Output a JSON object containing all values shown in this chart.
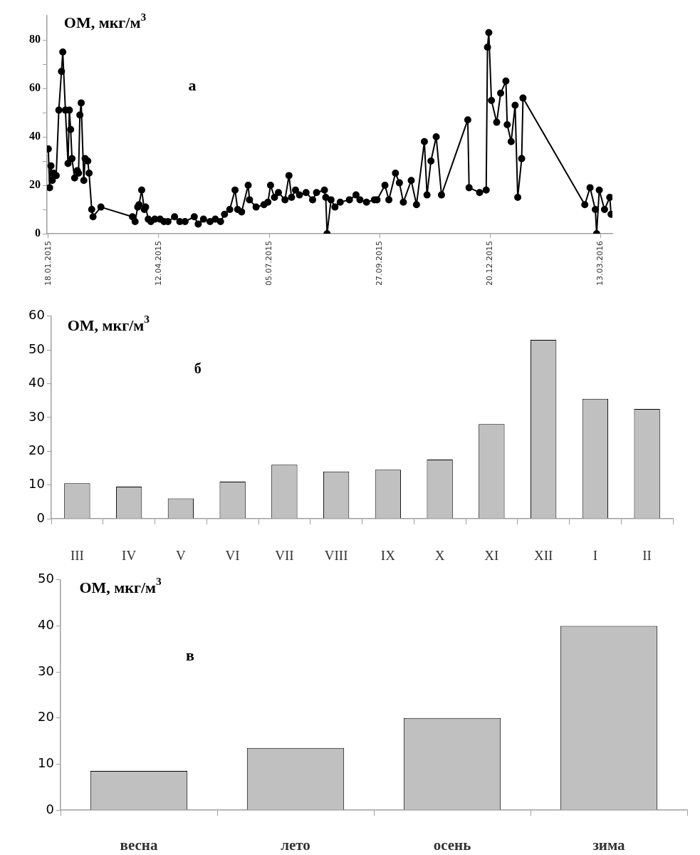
{
  "chart_data": [
    {
      "type": "line",
      "ylabel": "ОМ, мкг/м$^{3}$",
      "annotations": [
        "а"
      ],
      "marker": "circle",
      "line_style": "solid",
      "grid": false,
      "legend": false,
      "x": [
        "2015-01-18",
        "2015-01-19",
        "2015-01-20",
        "2015-01-21",
        "2015-01-22",
        "2015-01-24",
        "2015-01-26",
        "2015-01-28",
        "2015-01-29",
        "2015-01-31",
        "2015-02-02",
        "2015-02-03",
        "2015-02-04",
        "2015-02-05",
        "2015-02-07",
        "2015-02-09",
        "2015-02-10",
        "2015-02-11",
        "2015-02-12",
        "2015-02-14",
        "2015-02-15",
        "2015-02-17",
        "2015-02-18",
        "2015-02-20",
        "2015-02-21",
        "2015-02-27",
        "2015-03-23",
        "2015-03-25",
        "2015-03-27",
        "2015-03-28",
        "2015-03-30",
        "2015-04-01",
        "2015-04-02",
        "2015-04-04",
        "2015-04-06",
        "2015-04-09",
        "2015-04-13",
        "2015-04-16",
        "2015-04-19",
        "2015-04-24",
        "2015-04-28",
        "2015-05-02",
        "2015-05-09",
        "2015-05-12",
        "2015-05-16",
        "2015-05-21",
        "2015-05-25",
        "2015-05-29",
        "2015-06-01",
        "2015-06-05",
        "2015-06-09",
        "2015-06-11",
        "2015-06-14",
        "2015-06-19",
        "2015-06-20",
        "2015-06-25",
        "2015-07-01",
        "2015-07-04",
        "2015-07-06",
        "2015-07-09",
        "2015-07-12",
        "2015-07-17",
        "2015-07-20",
        "2015-07-22",
        "2015-07-25",
        "2015-07-28",
        "2015-08-02",
        "2015-08-07",
        "2015-08-10",
        "2015-08-16",
        "2015-08-17",
        "2015-08-18",
        "2015-08-21",
        "2015-08-24",
        "2015-08-28",
        "2015-09-04",
        "2015-09-09",
        "2015-09-12",
        "2015-09-17",
        "2015-09-23",
        "2015-09-25",
        "2015-10-01",
        "2015-10-04",
        "2015-10-09",
        "2015-10-12",
        "2015-10-15",
        "2015-10-21",
        "2015-10-25",
        "2015-10-31",
        "2015-11-02",
        "2015-11-05",
        "2015-11-09",
        "2015-11-13",
        "2015-12-03",
        "2015-12-04",
        "2015-12-12",
        "2015-12-17",
        "2015-12-18",
        "2015-12-19",
        "2015-12-21",
        "2015-12-25",
        "2015-12-28",
        "2016-01-01",
        "2016-01-02",
        "2016-01-05",
        "2016-01-08",
        "2016-01-10",
        "2016-01-13",
        "2016-01-14",
        "2016-03-01",
        "2016-03-05",
        "2016-03-09",
        "2016-03-10",
        "2016-03-12",
        "2016-03-16",
        "2016-03-20",
        "2016-03-21"
      ],
      "series": [
        {
          "color": "#000000",
          "values": [
            35,
            19,
            28,
            22,
            25,
            24,
            51,
            67,
            75,
            51,
            29,
            51,
            43,
            31,
            23,
            26,
            25,
            49,
            54,
            22,
            31,
            30,
            25,
            10,
            7,
            11,
            7,
            5,
            11,
            12,
            18,
            10,
            11,
            6,
            5,
            6,
            6,
            5,
            5,
            7,
            5,
            5,
            7,
            4,
            6,
            5,
            6,
            5,
            8,
            10,
            18,
            10,
            9,
            20,
            14,
            11,
            12,
            13,
            20,
            15,
            17,
            14,
            24,
            15,
            18,
            16,
            17,
            14,
            17,
            18,
            15,
            0,
            14,
            11,
            13,
            14,
            16,
            14,
            13,
            14,
            14,
            20,
            14,
            25,
            21,
            13,
            22,
            12,
            38,
            16,
            30,
            40,
            16,
            47,
            19,
            17,
            18,
            77,
            83,
            55,
            46,
            58,
            63,
            45,
            38,
            53,
            15,
            31,
            56,
            12,
            19,
            10,
            0,
            18,
            10,
            15,
            8
          ]
        }
      ],
      "xlim": [
        "2015-01-17",
        "2016-03-22"
      ],
      "xticks": [
        {
          "value": "2015-01-18",
          "label": "18.01.2015"
        },
        {
          "value": "2015-04-12",
          "label": "12.04.2015"
        },
        {
          "value": "2015-07-05",
          "label": "05.07.2015"
        },
        {
          "value": "2015-09-27",
          "label": "27.09.2015"
        },
        {
          "value": "2015-12-20",
          "label": "20.12.2015"
        },
        {
          "value": "2016-03-13",
          "label": "13.03.2016"
        }
      ],
      "ylim": [
        0,
        90
      ],
      "yticks": [
        0,
        {
          "value": 10,
          "label": null
        },
        20,
        {
          "value": 30,
          "label": null
        },
        40,
        {
          "value": 50,
          "label": null
        },
        60,
        {
          "value": 70,
          "label": null
        },
        80
      ]
    },
    {
      "type": "bar",
      "ylabel": "ОМ, мкг/м$^{3}$",
      "annotations": [
        "б"
      ],
      "grid": false,
      "legend": false,
      "categories": [
        "III",
        "IV",
        "V",
        "VI",
        "VII",
        "VIII",
        "IX",
        "X",
        "XI",
        "XII",
        "I",
        "II"
      ],
      "series": [
        {
          "color": "#c0c0c0",
          "values": [
            10.5,
            9.5,
            6,
            11,
            16,
            14,
            14.5,
            17.5,
            28,
            53,
            35.5,
            32.5
          ]
        }
      ],
      "ylim": [
        0,
        60
      ],
      "yticks": [
        0,
        10,
        20,
        30,
        40,
        50,
        60
      ]
    },
    {
      "type": "bar",
      "ylabel": "ОМ, мкг/м$^{3}$",
      "annotations": [
        "в"
      ],
      "grid": false,
      "legend": false,
      "categories": [
        "весна",
        "лето",
        "осень",
        "зима"
      ],
      "series": [
        {
          "color": "#c0c0c0",
          "values": [
            8.5,
            13.5,
            20,
            40
          ]
        }
      ],
      "ylim": [
        0,
        50
      ],
      "yticks": [
        0,
        10,
        20,
        30,
        40,
        50
      ]
    }
  ]
}
